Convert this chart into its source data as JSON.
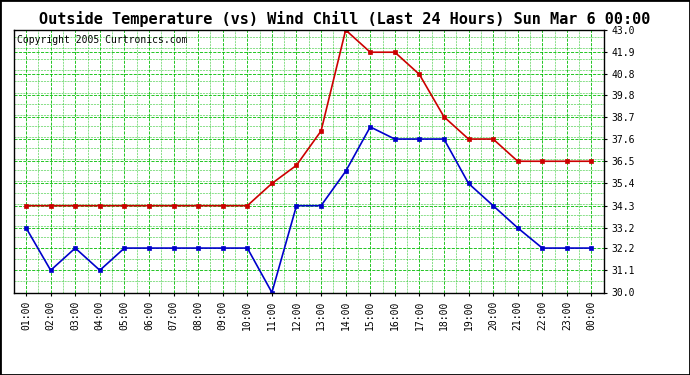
{
  "title": "Outside Temperature (vs) Wind Chill (Last 24 Hours) Sun Mar 6 00:00",
  "copyright": "Copyright 2005 Curtronics.com",
  "x_labels": [
    "01:00",
    "02:00",
    "03:00",
    "04:00",
    "05:00",
    "06:00",
    "07:00",
    "08:00",
    "09:00",
    "10:00",
    "11:00",
    "12:00",
    "13:00",
    "14:00",
    "15:00",
    "16:00",
    "17:00",
    "18:00",
    "19:00",
    "20:00",
    "21:00",
    "22:00",
    "23:00",
    "00:00"
  ],
  "ylim": [
    30.0,
    43.0
  ],
  "y_ticks": [
    30.0,
    31.1,
    32.2,
    33.2,
    34.3,
    35.4,
    36.5,
    37.6,
    38.7,
    39.8,
    40.8,
    41.9,
    43.0
  ],
  "red_data": [
    34.3,
    34.3,
    34.3,
    34.3,
    34.3,
    34.3,
    34.3,
    34.3,
    34.3,
    34.3,
    35.4,
    36.3,
    38.0,
    43.0,
    41.9,
    41.9,
    40.8,
    38.7,
    37.6,
    37.6,
    36.5,
    36.5,
    36.5,
    36.5
  ],
  "blue_data": [
    33.2,
    31.1,
    32.2,
    31.1,
    32.2,
    32.2,
    32.2,
    32.2,
    32.2,
    32.2,
    30.0,
    34.3,
    34.3,
    36.0,
    38.2,
    37.6,
    37.6,
    37.6,
    35.4,
    34.3,
    33.2,
    32.2,
    32.2,
    32.2
  ],
  "red_color": "#cc0000",
  "blue_color": "#0000cc",
  "bg_color": "#ffffff",
  "plot_bg_color": "#ffffff",
  "grid_color": "#00bb00",
  "title_fontsize": 11,
  "copyright_fontsize": 7,
  "tick_fontsize": 7,
  "marker": "s",
  "marker_size": 2.5,
  "line_width": 1.2
}
